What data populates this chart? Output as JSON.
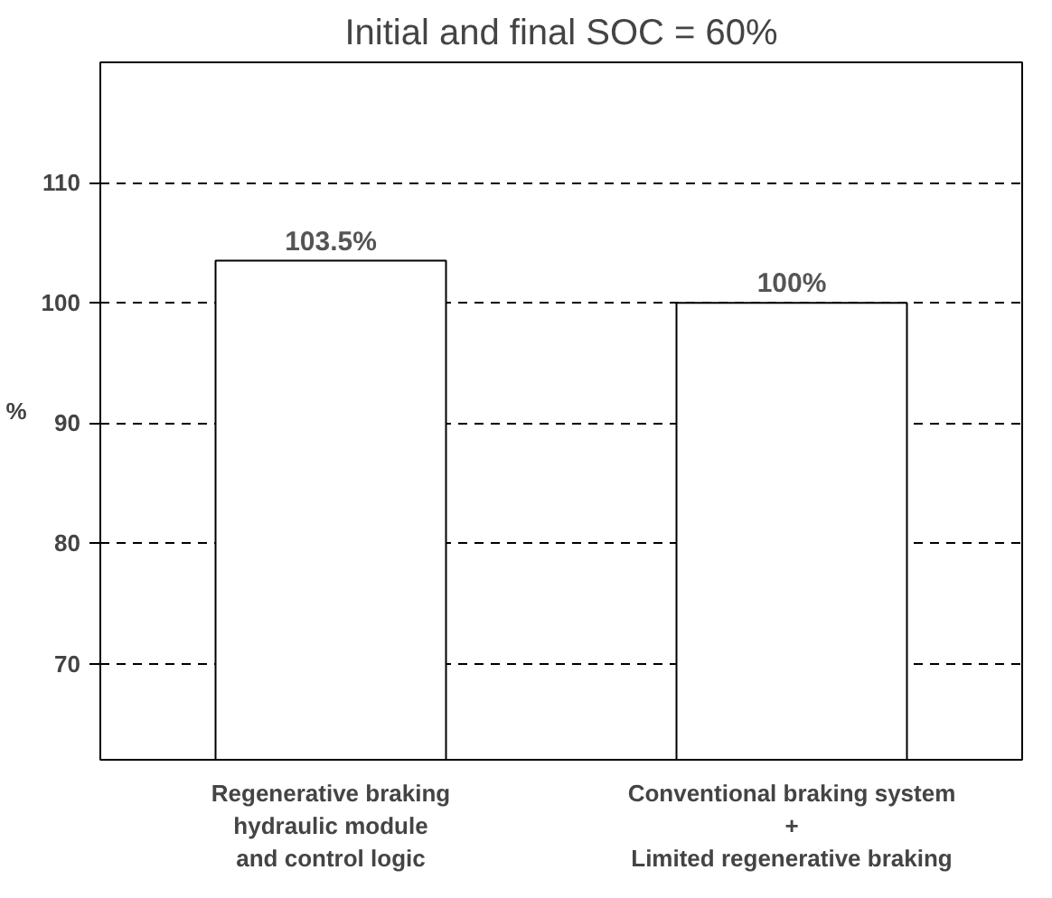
{
  "chart_data": {
    "type": "bar",
    "title": "Initial and final SOC = 60%",
    "ylabel": "%",
    "categories": [
      "Regenerative braking\nhydraulic module\nand control logic",
      "Conventional braking system\n+\nLimited regenerative braking"
    ],
    "values": [
      103.5,
      100
    ],
    "color": "#ffffff",
    "value_labels": [
      "103.5%",
      "100%"
    ],
    "ylim": [
      62,
      120
    ],
    "yticks": [
      70,
      80,
      90,
      100,
      110
    ],
    "grid": "y"
  }
}
